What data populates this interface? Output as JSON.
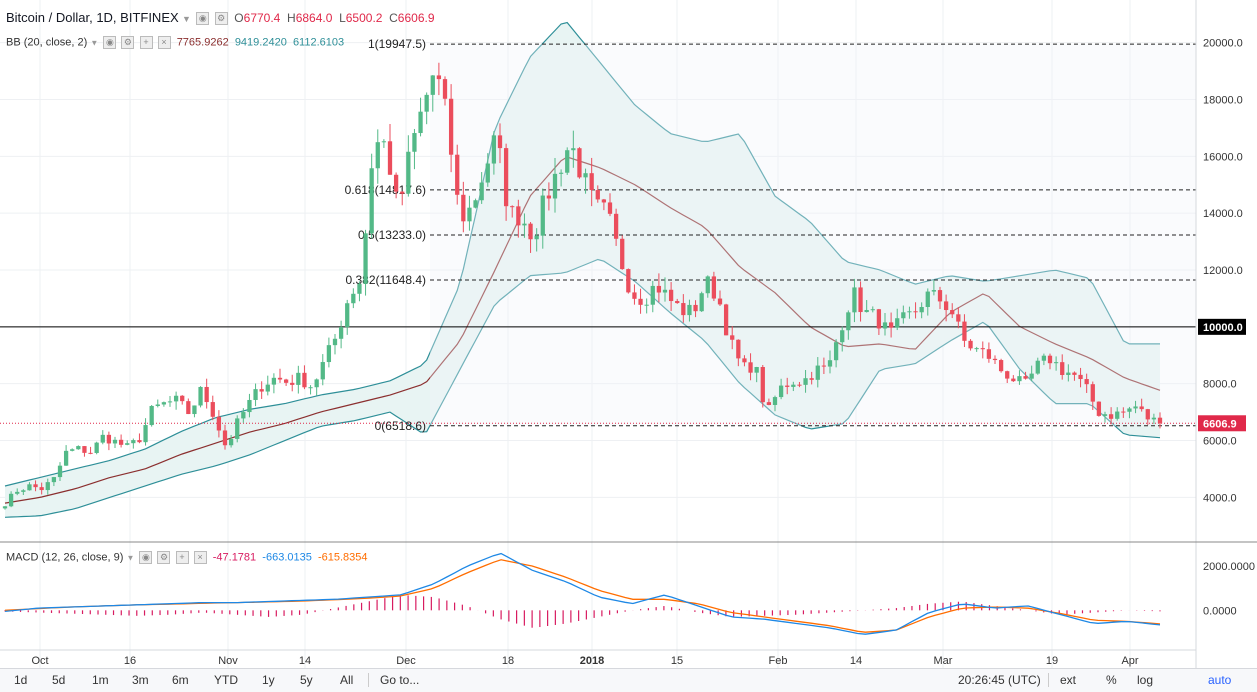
{
  "header": {
    "title": "Bitcoin / Dollar, 1D, BITFINEX",
    "ohlc": {
      "o_label": "O",
      "o": "6770.4",
      "h_label": "H",
      "h": "6864.0",
      "l_label": "L",
      "l": "6500.2",
      "c_label": "C",
      "c": "6606.9"
    },
    "bb_label": "BB (20, close, 2)",
    "bb_values": [
      "7765.9262",
      "9419.2420",
      "6112.6103"
    ],
    "macd_label": "MACD (12, 26, close, 9)",
    "macd_values": [
      "-47.1781",
      "-663.0135",
      "-615.8354"
    ]
  },
  "colors": {
    "up": "#53b987",
    "down": "#eb4d5c",
    "bb_fill": "#e8f4f3",
    "bb_band": "#2e8f98",
    "bb_basis": "#8b2f2f",
    "macd_line": "#1e88e5",
    "signal_line": "#ff6d00",
    "hist": "#d81b60",
    "macd_val1": "#d81b60",
    "macd_val2": "#1e88e5",
    "macd_val3": "#ff6d00"
  },
  "chart_data": [
    {
      "type": "candlestick",
      "title": "Bitcoin / Dollar, 1D, BITFINEX",
      "ylim": [
        2500,
        21500
      ],
      "yticks": [
        "4000.0",
        "6000.0",
        "8000.0",
        "10000.0",
        "12000.0",
        "14000.0",
        "16000.0",
        "18000.0",
        "20000.0"
      ],
      "xticks": [
        "Oct",
        "16",
        "Nov",
        "14",
        "Dec",
        "18",
        "2018",
        "15",
        "Feb",
        "14",
        "Mar",
        "19",
        "Apr"
      ],
      "price_tags": [
        {
          "value": 10000.0,
          "label": "10000.0",
          "style": "black"
        },
        {
          "value": 6606.9,
          "label": "6606.9",
          "style": "red"
        }
      ],
      "hlines": [
        {
          "value": 10000.0,
          "style": "solid"
        },
        {
          "value": 6606.9,
          "style": "dotted-red"
        }
      ],
      "fibonacci": [
        {
          "label": "1(19947.5)",
          "value": 19947.5
        },
        {
          "label": "0.618(14817.6)",
          "value": 14817.6
        },
        {
          "label": "0.5(13233.0)",
          "value": 13233.0
        },
        {
          "label": "0.382(11648.4)",
          "value": 11648.4
        },
        {
          "label": "0(6518.6)",
          "value": 6518.6
        }
      ],
      "close_anchors": [
        3800,
        4250,
        4400,
        4300,
        4650,
        5600,
        5700,
        5600,
        6150,
        5950,
        5750,
        6100,
        7100,
        7300,
        7400,
        6950,
        7800,
        6900,
        5750,
        6700,
        7400,
        8000,
        8200,
        8050,
        8200,
        7900,
        8800,
        9700,
        11100,
        11700,
        16500,
        16400,
        14000,
        16200,
        17700,
        19100,
        17200,
        13800,
        14200,
        15500,
        16700,
        14000,
        13900,
        13200,
        14500,
        15500,
        16500,
        15300,
        14200,
        14000,
        12500,
        11200,
        11000,
        11500,
        11000,
        10600,
        10500,
        11600,
        11100,
        9500,
        8500,
        8700,
        6900,
        7800,
        8100,
        8100,
        8500,
        8500,
        10000,
        11200,
        10500,
        10300,
        9700,
        10200,
        10500,
        11100,
        11000,
        10600,
        9500,
        9200,
        9000,
        8500,
        8200,
        7900,
        8600,
        8900,
        8500,
        8300,
        7800,
        7000,
        6900,
        7000,
        7200,
        6800,
        6606.9
      ],
      "bb_upper_anchors": [
        4400,
        4700,
        5000,
        5300,
        5700,
        6300,
        6800,
        7100,
        7300,
        7600,
        7800,
        8100,
        8700,
        11500,
        17000,
        19500,
        20800,
        19300,
        17800,
        16800,
        16500,
        16800,
        14600,
        13700,
        12300,
        12000,
        11500,
        11800,
        11600,
        11800,
        12000,
        11700,
        9400,
        9400
      ],
      "bb_lower_anchors": [
        3300,
        3350,
        3600,
        4000,
        4400,
        4800,
        5100,
        5500,
        6000,
        6500,
        6700,
        7000,
        6200,
        8500,
        10800,
        11800,
        11900,
        12400,
        11600,
        10500,
        9500,
        8000,
        6900,
        6400,
        6600,
        8500,
        8700,
        9500,
        10200,
        8500,
        7300,
        7300,
        6200,
        6100
      ],
      "bb_basis_anchors": [
        3800,
        4000,
        4300,
        4700,
        5000,
        5500,
        5900,
        6300,
        6600,
        7000,
        7300,
        7600,
        8000,
        9500,
        12000,
        14600,
        16000,
        15600,
        15000,
        14200,
        13500,
        12100,
        11200,
        10000,
        9300,
        9400,
        9200,
        10500,
        11200,
        10000,
        9400,
        8900,
        8200,
        7765.9
      ],
      "macd": {
        "ylim": [
          -1800,
          2600
        ],
        "yticks": [
          "2000.0000",
          "0.0000"
        ],
        "macd_anchors": [
          -50,
          100,
          150,
          200,
          250,
          300,
          350,
          350,
          400,
          450,
          500,
          600,
          700,
          1200,
          2000,
          2600,
          1800,
          1300,
          600,
          300,
          700,
          200,
          -300,
          -400,
          -600,
          -800,
          -1100,
          -900,
          -100,
          300,
          100,
          200,
          -200,
          -600,
          -500,
          -663
        ],
        "signal_anchors": [
          0,
          80,
          150,
          200,
          250,
          280,
          320,
          350,
          380,
          420,
          480,
          550,
          650,
          1000,
          1700,
          2300,
          2000,
          1500,
          900,
          500,
          500,
          300,
          -100,
          -300,
          -500,
          -700,
          -1000,
          -900,
          -300,
          100,
          150,
          100,
          -150,
          -450,
          -500,
          -616
        ],
        "hist_anchors": [
          -50,
          -100,
          -150,
          -200,
          -250,
          -200,
          -100,
          -200,
          -300,
          -200,
          100,
          400,
          700,
          600,
          200,
          -400,
          -800,
          -600,
          -300,
          0,
          200,
          -100,
          -300,
          -250,
          -200,
          -100,
          0,
          100,
          300,
          400,
          200,
          0,
          -200,
          -100,
          0,
          -47
        ]
      }
    }
  ],
  "toolbar": {
    "left": [
      "1d",
      "5d",
      "1m",
      "3m",
      "6m",
      "YTD",
      "1y",
      "5y",
      "All"
    ],
    "goto": "Go to...",
    "time": "20:26:45 (UTC)",
    "right": [
      "ext",
      "%",
      "log",
      "auto"
    ]
  }
}
